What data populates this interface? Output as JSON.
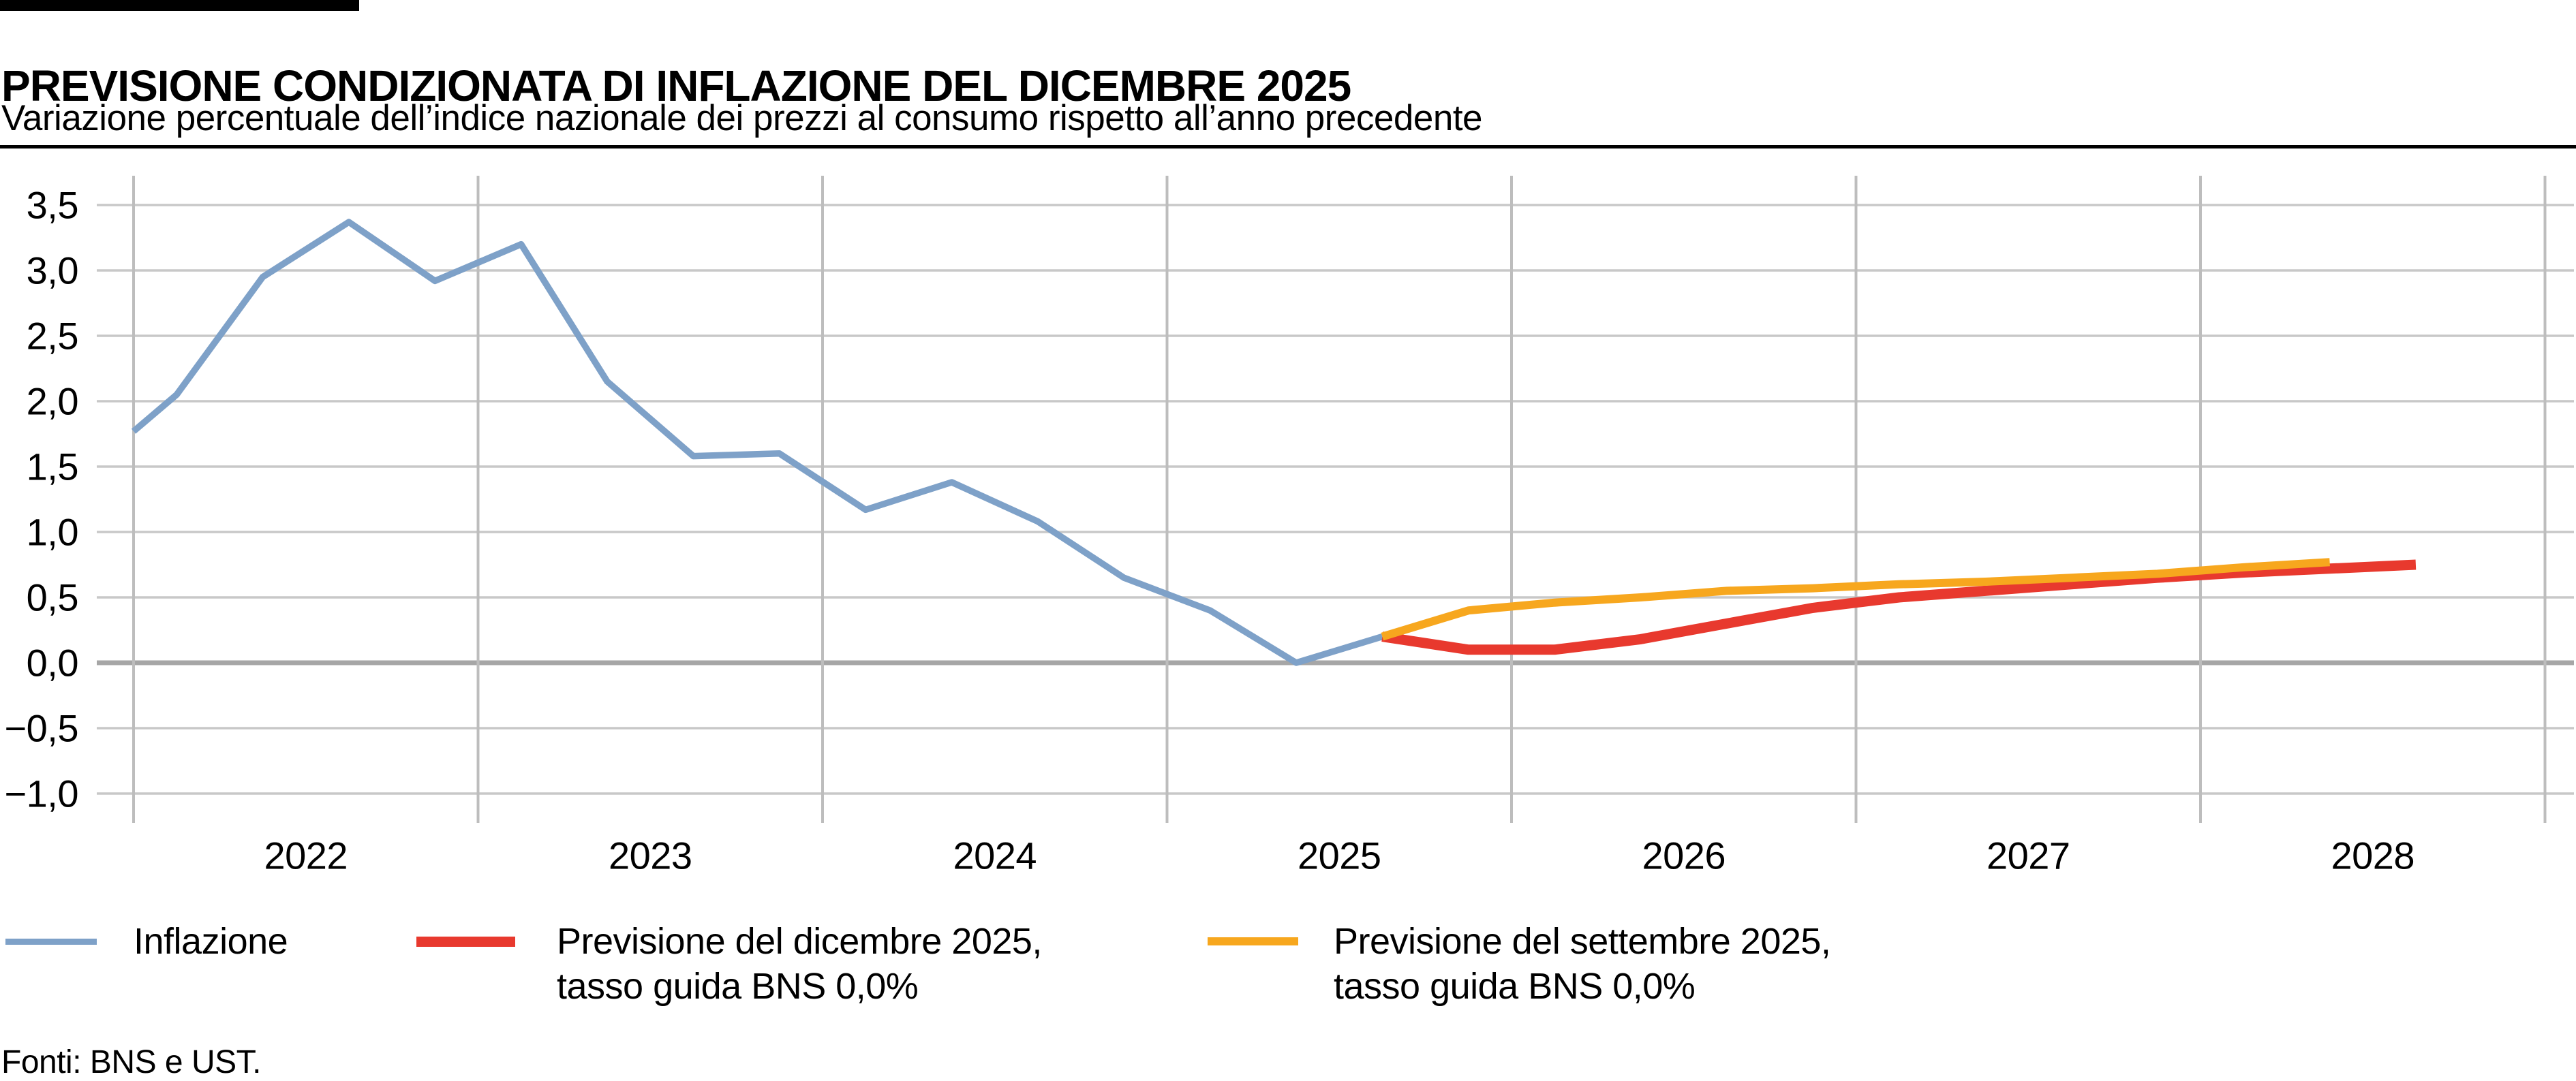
{
  "header": {
    "title": "PREVISIONE CONDIZIONATA DI INFLAZIONE DEL DICEMBRE 2025",
    "subtitle": "Variazione percentuale dell’indice nazionale dei prezzi al consumo rispetto all’anno precedente"
  },
  "footer": {
    "source": "Fonti: BNS e UST."
  },
  "legend": [
    {
      "line1": "Inflazione",
      "color": "#7EA1C8"
    },
    {
      "line1": "Previsione del dicembre 2025,",
      "line2": "tasso guida BNS 0,0%",
      "color": "#E8392E"
    },
    {
      "line1": "Previsione del settembre 2025,",
      "line2": "tasso guida BNS 0,0%",
      "color": "#F7A71E"
    }
  ],
  "chart_data": {
    "type": "line",
    "title": "Previsione condizionata di inflazione del dicembre 2025",
    "xlabel": "",
    "ylabel": "",
    "xlim": [
      2022,
      2029
    ],
    "ylim": [
      -1.0,
      3.5
    ],
    "grid": true,
    "legend_position": "bottom",
    "x_unit": "anno (dati trimestrali)",
    "colors": {
      "grid": "#C8C8C8",
      "vgrid": "#BDBDBD",
      "zero_line": "#A6A6A6"
    },
    "yticks": [
      {
        "label": "3,5",
        "value": 3.5
      },
      {
        "label": "3,0",
        "value": 3.0
      },
      {
        "label": "2,5",
        "value": 2.5
      },
      {
        "label": "2,0",
        "value": 2.0
      },
      {
        "label": "1,5",
        "value": 1.5
      },
      {
        "label": "1,0",
        "value": 1.0
      },
      {
        "label": "0,5",
        "value": 0.5
      },
      {
        "label": "0,0",
        "value": 0.0
      },
      {
        "label": "−0,5",
        "value": -0.5
      },
      {
        "label": "−1,0",
        "value": -1.0
      }
    ],
    "x_gridlines": [
      2022,
      2023,
      2024,
      2025,
      2026,
      2027,
      2028,
      2029
    ],
    "xticks": [
      {
        "label": "2022",
        "x": 2022.5
      },
      {
        "label": "2023",
        "x": 2023.5
      },
      {
        "label": "2024",
        "x": 2024.5
      },
      {
        "label": "2025",
        "x": 2025.5
      },
      {
        "label": "2026",
        "x": 2026.5
      },
      {
        "label": "2027",
        "x": 2027.5
      },
      {
        "label": "2028",
        "x": 2028.5
      }
    ],
    "series": [
      {
        "id": "inflazione",
        "name": "Inflazione",
        "color": "#7EA1C8",
        "width": 9.5,
        "points": [
          [
            2022.0,
            1.77
          ],
          [
            2022.125,
            2.05
          ],
          [
            2022.375,
            2.95
          ],
          [
            2022.625,
            3.37
          ],
          [
            2022.875,
            2.92
          ],
          [
            2023.125,
            3.2
          ],
          [
            2023.375,
            2.15
          ],
          [
            2023.625,
            1.58
          ],
          [
            2023.875,
            1.6
          ],
          [
            2024.125,
            1.17
          ],
          [
            2024.375,
            1.38
          ],
          [
            2024.625,
            1.08
          ],
          [
            2024.875,
            0.65
          ],
          [
            2025.125,
            0.4
          ],
          [
            2025.375,
            0.0
          ],
          [
            2025.625,
            0.2
          ]
        ]
      },
      {
        "id": "previsione-dicembre-2025",
        "name": "Previsione del dicembre 2025, tasso guida BNS 0,0%",
        "color": "#E8392E",
        "width": 15,
        "points": [
          [
            2025.625,
            0.2
          ],
          [
            2025.875,
            0.1
          ],
          [
            2026.125,
            0.1
          ],
          [
            2026.375,
            0.18
          ],
          [
            2026.625,
            0.3
          ],
          [
            2026.875,
            0.42
          ],
          [
            2027.125,
            0.5
          ],
          [
            2027.375,
            0.55
          ],
          [
            2027.625,
            0.6
          ],
          [
            2027.875,
            0.65
          ],
          [
            2028.125,
            0.69
          ],
          [
            2028.375,
            0.72
          ],
          [
            2028.625,
            0.75
          ]
        ]
      },
      {
        "id": "previsione-settembre-2025",
        "name": "Previsione del settembre 2025, tasso guida BNS 0,0%",
        "color": "#F7A71E",
        "width": 12,
        "points": [
          [
            2025.625,
            0.2
          ],
          [
            2025.875,
            0.4
          ],
          [
            2026.125,
            0.46
          ],
          [
            2026.375,
            0.5
          ],
          [
            2026.625,
            0.55
          ],
          [
            2026.875,
            0.57
          ],
          [
            2027.125,
            0.6
          ],
          [
            2027.375,
            0.62
          ],
          [
            2027.625,
            0.65
          ],
          [
            2027.875,
            0.68
          ],
          [
            2028.125,
            0.73
          ],
          [
            2028.375,
            0.77
          ]
        ]
      }
    ]
  }
}
